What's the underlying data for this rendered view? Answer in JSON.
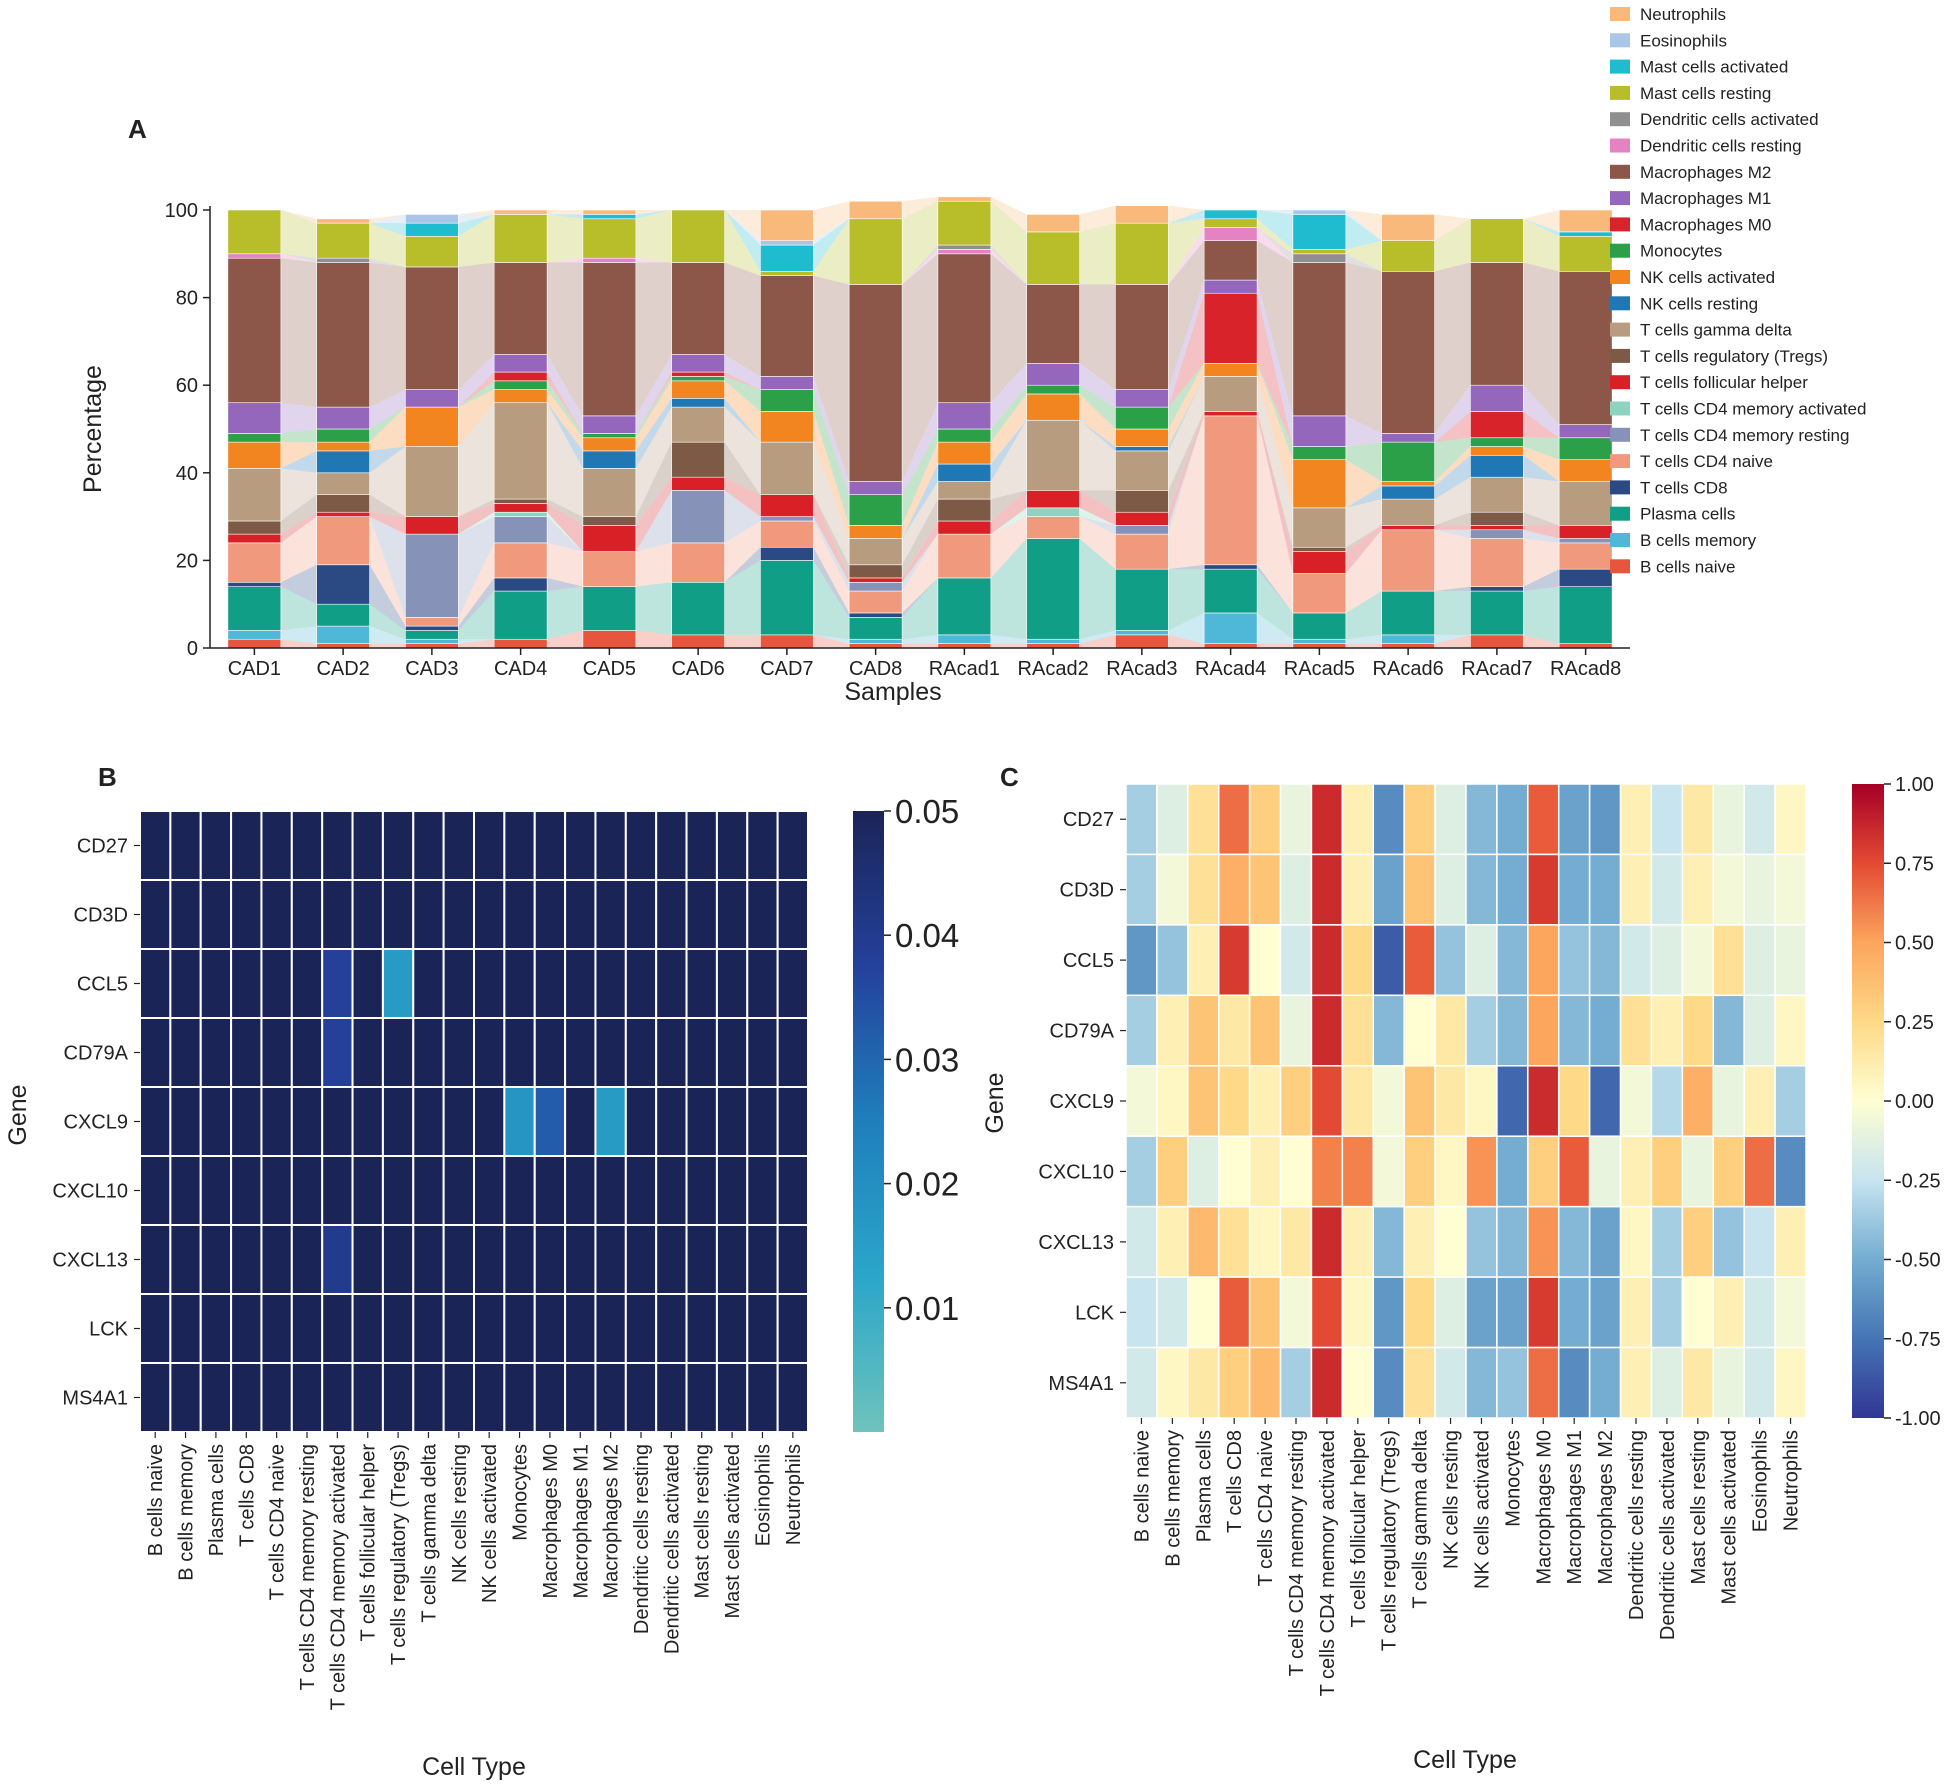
{
  "chart_data": [
    {
      "type": "bar",
      "stacked": true,
      "panel_label": "A",
      "xlabel": "Samples",
      "ylabel": "Percentage",
      "ylim": [
        0,
        100
      ],
      "yticks": [
        0,
        20,
        40,
        60,
        80,
        100
      ],
      "grid": false,
      "legend_position": "top-right, outside plot",
      "categories": [
        "CAD1",
        "CAD2",
        "CAD3",
        "CAD4",
        "CAD5",
        "CAD6",
        "CAD7",
        "CAD8",
        "RAcad1",
        "RAcad2",
        "RAcad3",
        "RAcad4",
        "RAcad5",
        "RAcad6",
        "RAcad7",
        "RAcad8"
      ],
      "series": [
        {
          "name": "B cells naive",
          "color": "#e8553e",
          "values": [
            2,
            1,
            1,
            2,
            4,
            3,
            3,
            1,
            1,
            1,
            3,
            1,
            1,
            1,
            3,
            1
          ]
        },
        {
          "name": "B cells memory",
          "color": "#4fb8d8",
          "values": [
            2,
            4,
            1,
            0,
            0,
            0,
            0,
            1,
            2,
            1,
            1,
            7,
            1,
            2,
            0,
            0
          ]
        },
        {
          "name": "Plasma cells",
          "color": "#119e86",
          "values": [
            10,
            5,
            2,
            11,
            10,
            12,
            17,
            5,
            13,
            23,
            14,
            10,
            6,
            10,
            10,
            13
          ]
        },
        {
          "name": "T cells CD8",
          "color": "#2b4a84",
          "values": [
            1,
            9,
            1,
            3,
            0,
            0,
            3,
            1,
            0,
            0,
            0,
            1,
            0,
            0,
            1,
            4
          ]
        },
        {
          "name": "T cells CD4 naive",
          "color": "#f0997d",
          "values": [
            9,
            11,
            2,
            8,
            8,
            9,
            6,
            5,
            10,
            5,
            8,
            34,
            9,
            14,
            11,
            6
          ]
        },
        {
          "name": "T cells CD4 memory resting",
          "color": "#8692b8",
          "values": [
            0,
            0,
            19,
            6,
            0,
            12,
            1,
            2,
            0,
            0,
            2,
            0,
            0,
            0,
            2,
            1
          ]
        },
        {
          "name": "T cells CD4 memory activated",
          "color": "#8dd3c0",
          "values": [
            0,
            0,
            0,
            1,
            0,
            0,
            0,
            0,
            0,
            2,
            0,
            0,
            0,
            0,
            0,
            0
          ]
        },
        {
          "name": "T cells follicular helper",
          "color": "#d92027",
          "values": [
            2,
            1,
            4,
            2,
            6,
            3,
            5,
            1,
            3,
            4,
            3,
            1,
            5,
            1,
            1,
            3
          ]
        },
        {
          "name": "T cells regulatory (Tregs)",
          "color": "#7d5a45",
          "values": [
            3,
            4,
            0,
            1,
            2,
            8,
            0,
            3,
            5,
            0,
            5,
            0,
            1,
            0,
            3,
            0
          ]
        },
        {
          "name": "T cells gamma delta",
          "color": "#b89c80",
          "values": [
            12,
            5,
            16,
            22,
            11,
            8,
            12,
            6,
            4,
            16,
            9,
            8,
            9,
            6,
            8,
            10
          ]
        },
        {
          "name": "NK cells resting",
          "color": "#1f77b4",
          "values": [
            0,
            5,
            0,
            0,
            4,
            2,
            0,
            0,
            4,
            0,
            1,
            0,
            0,
            3,
            5,
            0
          ]
        },
        {
          "name": "NK cells activated",
          "color": "#f38520",
          "values": [
            6,
            2,
            9,
            3,
            3,
            4,
            7,
            3,
            5,
            6,
            4,
            3,
            11,
            1,
            2,
            5
          ]
        },
        {
          "name": "Monocytes",
          "color": "#2ca048",
          "values": [
            2,
            3,
            0,
            2,
            1,
            1,
            5,
            7,
            3,
            2,
            5,
            0,
            3,
            9,
            2,
            5
          ]
        },
        {
          "name": "Macrophages M0",
          "color": "#d9232a",
          "values": [
            0,
            0,
            0,
            2,
            0,
            1,
            0,
            0,
            0,
            0,
            0,
            16,
            0,
            0,
            6,
            0
          ]
        },
        {
          "name": "Macrophages M1",
          "color": "#9467bd",
          "values": [
            7,
            5,
            4,
            4,
            4,
            4,
            3,
            3,
            6,
            5,
            4,
            3,
            7,
            2,
            6,
            3
          ]
        },
        {
          "name": "Macrophages M2",
          "color": "#8c5648",
          "values": [
            33,
            33,
            28,
            21,
            35,
            21,
            23,
            45,
            34,
            18,
            24,
            9,
            35,
            37,
            28,
            35
          ]
        },
        {
          "name": "Dendritic cells resting",
          "color": "#e583c2",
          "values": [
            1,
            0,
            0,
            0,
            1,
            0,
            0,
            0,
            1,
            0,
            0,
            3,
            0,
            0,
            0,
            0
          ]
        },
        {
          "name": "Dendritic cells activated",
          "color": "#8f8f8f",
          "values": [
            0,
            1,
            0,
            0,
            0,
            0,
            0,
            0,
            1,
            0,
            0,
            0,
            2,
            0,
            0,
            0
          ]
        },
        {
          "name": "Mast cells resting",
          "color": "#b8bd2a",
          "values": [
            10,
            8,
            7,
            11,
            9,
            12,
            1,
            15,
            10,
            12,
            14,
            2,
            1,
            7,
            10,
            8
          ]
        },
        {
          "name": "Mast cells activated",
          "color": "#1fbccf",
          "values": [
            0,
            0,
            3,
            0,
            1,
            0,
            6,
            0,
            0,
            0,
            0,
            2,
            8,
            0,
            0,
            1
          ]
        },
        {
          "name": "Eosinophils",
          "color": "#a9c5e8",
          "values": [
            0,
            0,
            2,
            0,
            0,
            0,
            1,
            0,
            0,
            0,
            0,
            0,
            1,
            0,
            0,
            0
          ]
        },
        {
          "name": "Neutrophils",
          "color": "#f8b97a",
          "values": [
            0,
            1,
            0,
            1,
            1,
            0,
            7,
            4,
            1,
            4,
            4,
            0,
            0,
            6,
            0,
            5
          ]
        }
      ]
    },
    {
      "type": "heatmap",
      "panel_label": "B",
      "xlabel": "Cell Type",
      "ylabel": "Gene",
      "colorbar_ticks": [
        "0.01",
        "0.02",
        "0.03",
        "0.04",
        "0.05"
      ],
      "colorbar_range": [
        0.0,
        0.05
      ],
      "x": [
        "B cells naive",
        "B cells memory",
        "Plasma cells",
        "T cells CD8",
        "T cells CD4 naive",
        "T cells CD4 memory resting",
        "T cells CD4 memory activated",
        "T cells follicular helper",
        "T cells regulatory (Tregs)",
        "T cells gamma delta",
        "NK cells resting",
        "NK cells activated",
        "Monocytes",
        "Macrophages M0",
        "Macrophages M1",
        "Macrophages M2",
        "Dendritic cells resting",
        "Dendritic cells activated",
        "Mast cells resting",
        "Mast cells activated",
        "Eosinophils",
        "Neutrophils"
      ],
      "y": [
        "CD27",
        "CD3D",
        "CCL5",
        "CD79A",
        "CXCL9",
        "CXCL10",
        "CXCL13",
        "LCK",
        "MS4A1"
      ],
      "values": [
        [
          0.05,
          0.05,
          0.05,
          0.05,
          0.05,
          0.05,
          0.05,
          0.05,
          0.05,
          0.05,
          0.05,
          0.05,
          0.05,
          0.05,
          0.05,
          0.05,
          0.05,
          0.05,
          0.05,
          0.05,
          0.05,
          0.05
        ],
        [
          0.05,
          0.05,
          0.05,
          0.05,
          0.05,
          0.05,
          0.05,
          0.05,
          0.05,
          0.05,
          0.05,
          0.05,
          0.05,
          0.05,
          0.05,
          0.05,
          0.05,
          0.05,
          0.05,
          0.05,
          0.05,
          0.05
        ],
        [
          0.05,
          0.05,
          0.05,
          0.05,
          0.05,
          0.05,
          0.038,
          0.05,
          0.016,
          0.05,
          0.05,
          0.05,
          0.05,
          0.05,
          0.05,
          0.05,
          0.05,
          0.05,
          0.05,
          0.05,
          0.05,
          0.05
        ],
        [
          0.05,
          0.05,
          0.05,
          0.05,
          0.05,
          0.05,
          0.038,
          0.05,
          0.05,
          0.05,
          0.05,
          0.05,
          0.05,
          0.05,
          0.05,
          0.05,
          0.05,
          0.05,
          0.05,
          0.05,
          0.05,
          0.05
        ],
        [
          0.05,
          0.05,
          0.05,
          0.05,
          0.05,
          0.05,
          0.05,
          0.05,
          0.05,
          0.05,
          0.05,
          0.05,
          0.018,
          0.032,
          0.05,
          0.016,
          0.05,
          0.05,
          0.05,
          0.05,
          0.05,
          0.05
        ],
        [
          0.05,
          0.05,
          0.05,
          0.05,
          0.05,
          0.05,
          0.05,
          0.05,
          0.05,
          0.05,
          0.05,
          0.05,
          0.05,
          0.05,
          0.05,
          0.05,
          0.05,
          0.05,
          0.05,
          0.05,
          0.05,
          0.05
        ],
        [
          0.05,
          0.05,
          0.05,
          0.05,
          0.05,
          0.05,
          0.04,
          0.05,
          0.05,
          0.05,
          0.05,
          0.05,
          0.05,
          0.05,
          0.05,
          0.05,
          0.05,
          0.05,
          0.05,
          0.05,
          0.05,
          0.05
        ],
        [
          0.05,
          0.05,
          0.05,
          0.05,
          0.05,
          0.05,
          0.05,
          0.05,
          0.05,
          0.05,
          0.05,
          0.05,
          0.05,
          0.05,
          0.05,
          0.05,
          0.05,
          0.05,
          0.05,
          0.05,
          0.05,
          0.05
        ],
        [
          0.05,
          0.05,
          0.05,
          0.05,
          0.05,
          0.05,
          0.05,
          0.05,
          0.05,
          0.05,
          0.05,
          0.05,
          0.05,
          0.05,
          0.05,
          0.05,
          0.05,
          0.05,
          0.05,
          0.05,
          0.05,
          0.05
        ]
      ]
    },
    {
      "type": "heatmap",
      "panel_label": "C",
      "xlabel": "Cell Type",
      "ylabel": "Gene",
      "colorbar_ticks": [
        "-1.00",
        "-0.75",
        "-0.50",
        "-0.25",
        "0.00",
        "0.25",
        "0.50",
        "0.75",
        "1.00"
      ],
      "colorbar_range": [
        -1,
        1
      ],
      "x": [
        "B cells naive",
        "B cells memory",
        "Plasma cells",
        "T cells CD8",
        "T cells CD4 naive",
        "T cells CD4 memory resting",
        "T cells CD4 memory activated",
        "T cells follicular helper",
        "T cells regulatory (Tregs)",
        "T cells gamma delta",
        "NK cells resting",
        "NK cells activated",
        "Monocytes",
        "Macrophages M0",
        "Macrophages M1",
        "Macrophages M2",
        "Dendritic cells resting",
        "Dendritic cells activated",
        "Mast cells resting",
        "Mast cells activated",
        "Eosinophils",
        "Neutrophils"
      ],
      "y": [
        "CD27",
        "CD3D",
        "CCL5",
        "CD79A",
        "CXCL9",
        "CXCL10",
        "CXCL13",
        "LCK",
        "MS4A1"
      ],
      "values": [
        [
          -0.35,
          -0.15,
          0.2,
          0.65,
          0.3,
          -0.1,
          0.85,
          0.1,
          -0.65,
          0.3,
          -0.15,
          -0.45,
          -0.5,
          0.7,
          -0.55,
          -0.6,
          0.1,
          -0.25,
          0.15,
          -0.1,
          -0.2,
          0.05
        ],
        [
          -0.35,
          -0.05,
          0.2,
          0.45,
          0.35,
          -0.15,
          0.85,
          0.1,
          -0.55,
          0.35,
          -0.15,
          -0.45,
          -0.5,
          0.8,
          -0.5,
          -0.5,
          0.1,
          -0.2,
          0.1,
          -0.05,
          -0.1,
          -0.05
        ],
        [
          -0.6,
          -0.4,
          0.1,
          0.8,
          0.0,
          -0.2,
          0.85,
          0.25,
          -0.85,
          0.7,
          -0.4,
          -0.15,
          -0.45,
          0.5,
          -0.4,
          -0.45,
          -0.2,
          -0.15,
          -0.05,
          0.2,
          -0.15,
          -0.1
        ],
        [
          -0.35,
          0.1,
          0.35,
          0.15,
          0.35,
          -0.1,
          0.85,
          0.2,
          -0.45,
          0.0,
          0.15,
          -0.35,
          -0.45,
          0.5,
          -0.45,
          -0.5,
          0.2,
          0.1,
          0.25,
          -0.45,
          -0.15,
          0.05
        ],
        [
          -0.05,
          0.05,
          0.35,
          0.25,
          0.1,
          0.3,
          0.75,
          0.15,
          -0.05,
          0.35,
          0.15,
          0.05,
          -0.8,
          0.85,
          0.25,
          -0.8,
          -0.05,
          -0.3,
          0.45,
          -0.1,
          0.1,
          -0.35
        ],
        [
          -0.35,
          0.3,
          -0.15,
          0.0,
          0.1,
          0.0,
          0.6,
          0.6,
          -0.05,
          0.3,
          0.05,
          0.55,
          -0.5,
          0.3,
          0.7,
          -0.1,
          0.1,
          0.3,
          -0.1,
          0.3,
          0.65,
          -0.65
        ],
        [
          -0.2,
          0.1,
          0.4,
          0.2,
          0.05,
          0.15,
          0.85,
          0.1,
          -0.45,
          0.1,
          0.0,
          -0.4,
          -0.45,
          0.55,
          -0.45,
          -0.55,
          0.05,
          -0.35,
          0.3,
          -0.4,
          -0.25,
          0.1
        ],
        [
          -0.25,
          -0.2,
          0.0,
          0.7,
          0.35,
          -0.05,
          0.75,
          0.05,
          -0.6,
          0.25,
          -0.15,
          -0.55,
          -0.55,
          0.8,
          -0.5,
          -0.55,
          0.1,
          -0.35,
          0.0,
          0.1,
          -0.2,
          -0.05
        ],
        [
          -0.2,
          0.05,
          0.15,
          0.3,
          0.4,
          -0.35,
          0.85,
          0.0,
          -0.65,
          0.2,
          -0.2,
          -0.45,
          -0.4,
          0.65,
          -0.65,
          -0.5,
          0.1,
          -0.15,
          0.15,
          -0.1,
          -0.2,
          0.05
        ]
      ]
    }
  ]
}
